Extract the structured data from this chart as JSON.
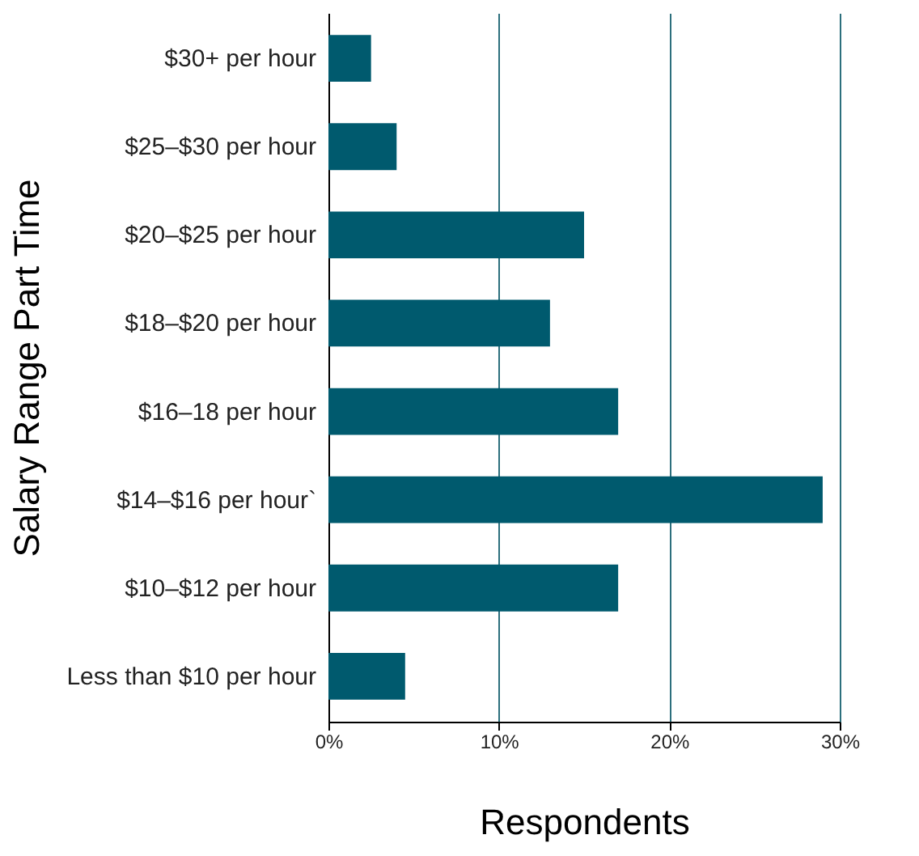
{
  "chart_data": {
    "type": "bar",
    "orientation": "horizontal",
    "xlabel": "Respondents",
    "ylabel": "Salary Range Part Time",
    "categories": [
      "$30+ per hour",
      "$25–$30 per hour",
      "$20–$25 per hour",
      "$18–$20 per hour",
      "$16–18 per hour",
      "$14–$16 per hour`",
      "$10–$12 per hour",
      "Less than $10 per hour"
    ],
    "values": [
      2.5,
      4,
      15,
      13,
      17,
      29,
      17,
      4.5
    ],
    "color": "#005a6e",
    "xlim": [
      0,
      30
    ],
    "xticks": [
      {
        "value": 0,
        "label": "0%"
      },
      {
        "value": 10,
        "label": "10%"
      },
      {
        "value": 20,
        "label": "20%"
      },
      {
        "value": 30,
        "label": "30%"
      }
    ],
    "grid": "x"
  }
}
